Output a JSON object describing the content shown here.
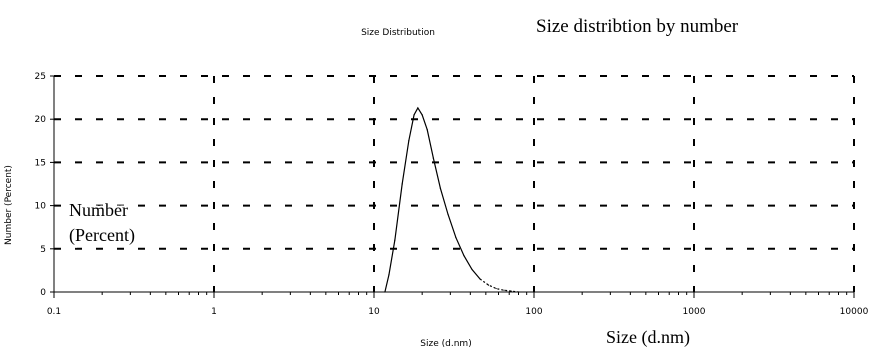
{
  "chart_data": {
    "type": "line",
    "title": "Size Distribution",
    "annotation_title": "Size distribtion by number",
    "xlabel": "Size (d.nm)",
    "xlabel_annotation": "Size (d.nm)",
    "ylabel": "Number (Percent)",
    "ylabel_annotation_lines": [
      "Number",
      "(Percent)"
    ],
    "x_scale": "log",
    "xlim": [
      0.1,
      10000
    ],
    "ylim": [
      0,
      25
    ],
    "x_ticks": [
      0.1,
      1,
      10,
      100,
      1000,
      10000
    ],
    "x_tick_labels": [
      "0.1",
      "1",
      "10",
      "100",
      "1000",
      "10000"
    ],
    "y_ticks": [
      0,
      5,
      10,
      15,
      20,
      25
    ],
    "y_tick_labels": [
      "0",
      "5",
      "10",
      "15",
      "20",
      "25"
    ],
    "grid": true,
    "series": [
      {
        "x": [
          11.7,
          12.4,
          13.5,
          15.0,
          16.5,
          17.8,
          18.8,
          20.0,
          21.5,
          23.5,
          26.0,
          29.0,
          32.5,
          36.5,
          41.0,
          46.0,
          52.0,
          58.0,
          65.0,
          72.0,
          80.0
        ],
        "y": [
          0,
          2.0,
          6.0,
          12.5,
          17.5,
          20.5,
          21.3,
          20.5,
          18.8,
          15.5,
          12.0,
          9.0,
          6.3,
          4.2,
          2.6,
          1.5,
          0.8,
          0.4,
          0.2,
          0.1,
          0
        ]
      }
    ]
  }
}
